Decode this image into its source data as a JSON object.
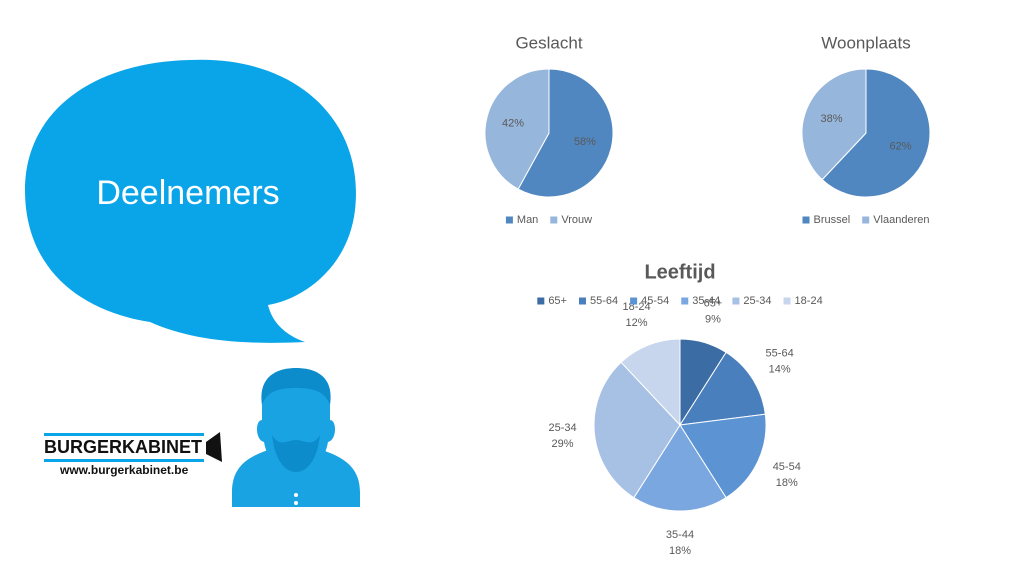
{
  "slide": {
    "title": "Deelnemers",
    "logo": "BURGERKABINET",
    "url": "www.burgerkabinet.be"
  },
  "chart_data": [
    {
      "type": "pie",
      "title": "Geslacht",
      "categories": [
        "Man",
        "Vrouw"
      ],
      "values": [
        58,
        42
      ],
      "value_labels": [
        "58%",
        "42%"
      ],
      "colors": [
        "#5087c0",
        "#97b6dc"
      ],
      "legend": "bottom"
    },
    {
      "type": "pie",
      "title": "Woonplaats",
      "categories": [
        "Brussel",
        "Vlaanderen"
      ],
      "values": [
        62,
        38
      ],
      "value_labels": [
        "62%",
        "38%"
      ],
      "colors": [
        "#5087c0",
        "#97b6dc"
      ],
      "legend": "bottom"
    },
    {
      "type": "pie",
      "title": "Leeftijd",
      "categories": [
        "65+",
        "55-64",
        "45-54",
        "35-44",
        "25-34",
        "18-24"
      ],
      "values": [
        9,
        14,
        18,
        18,
        29,
        12
      ],
      "value_labels": [
        "9%",
        "14%",
        "18%",
        "18%",
        "29%",
        "12%"
      ],
      "colors": [
        "#3c6ca4",
        "#4a7fbe",
        "#5b93d3",
        "#7aa7df",
        "#a7c1e5",
        "#c7d6ec"
      ],
      "legend": "top"
    }
  ]
}
